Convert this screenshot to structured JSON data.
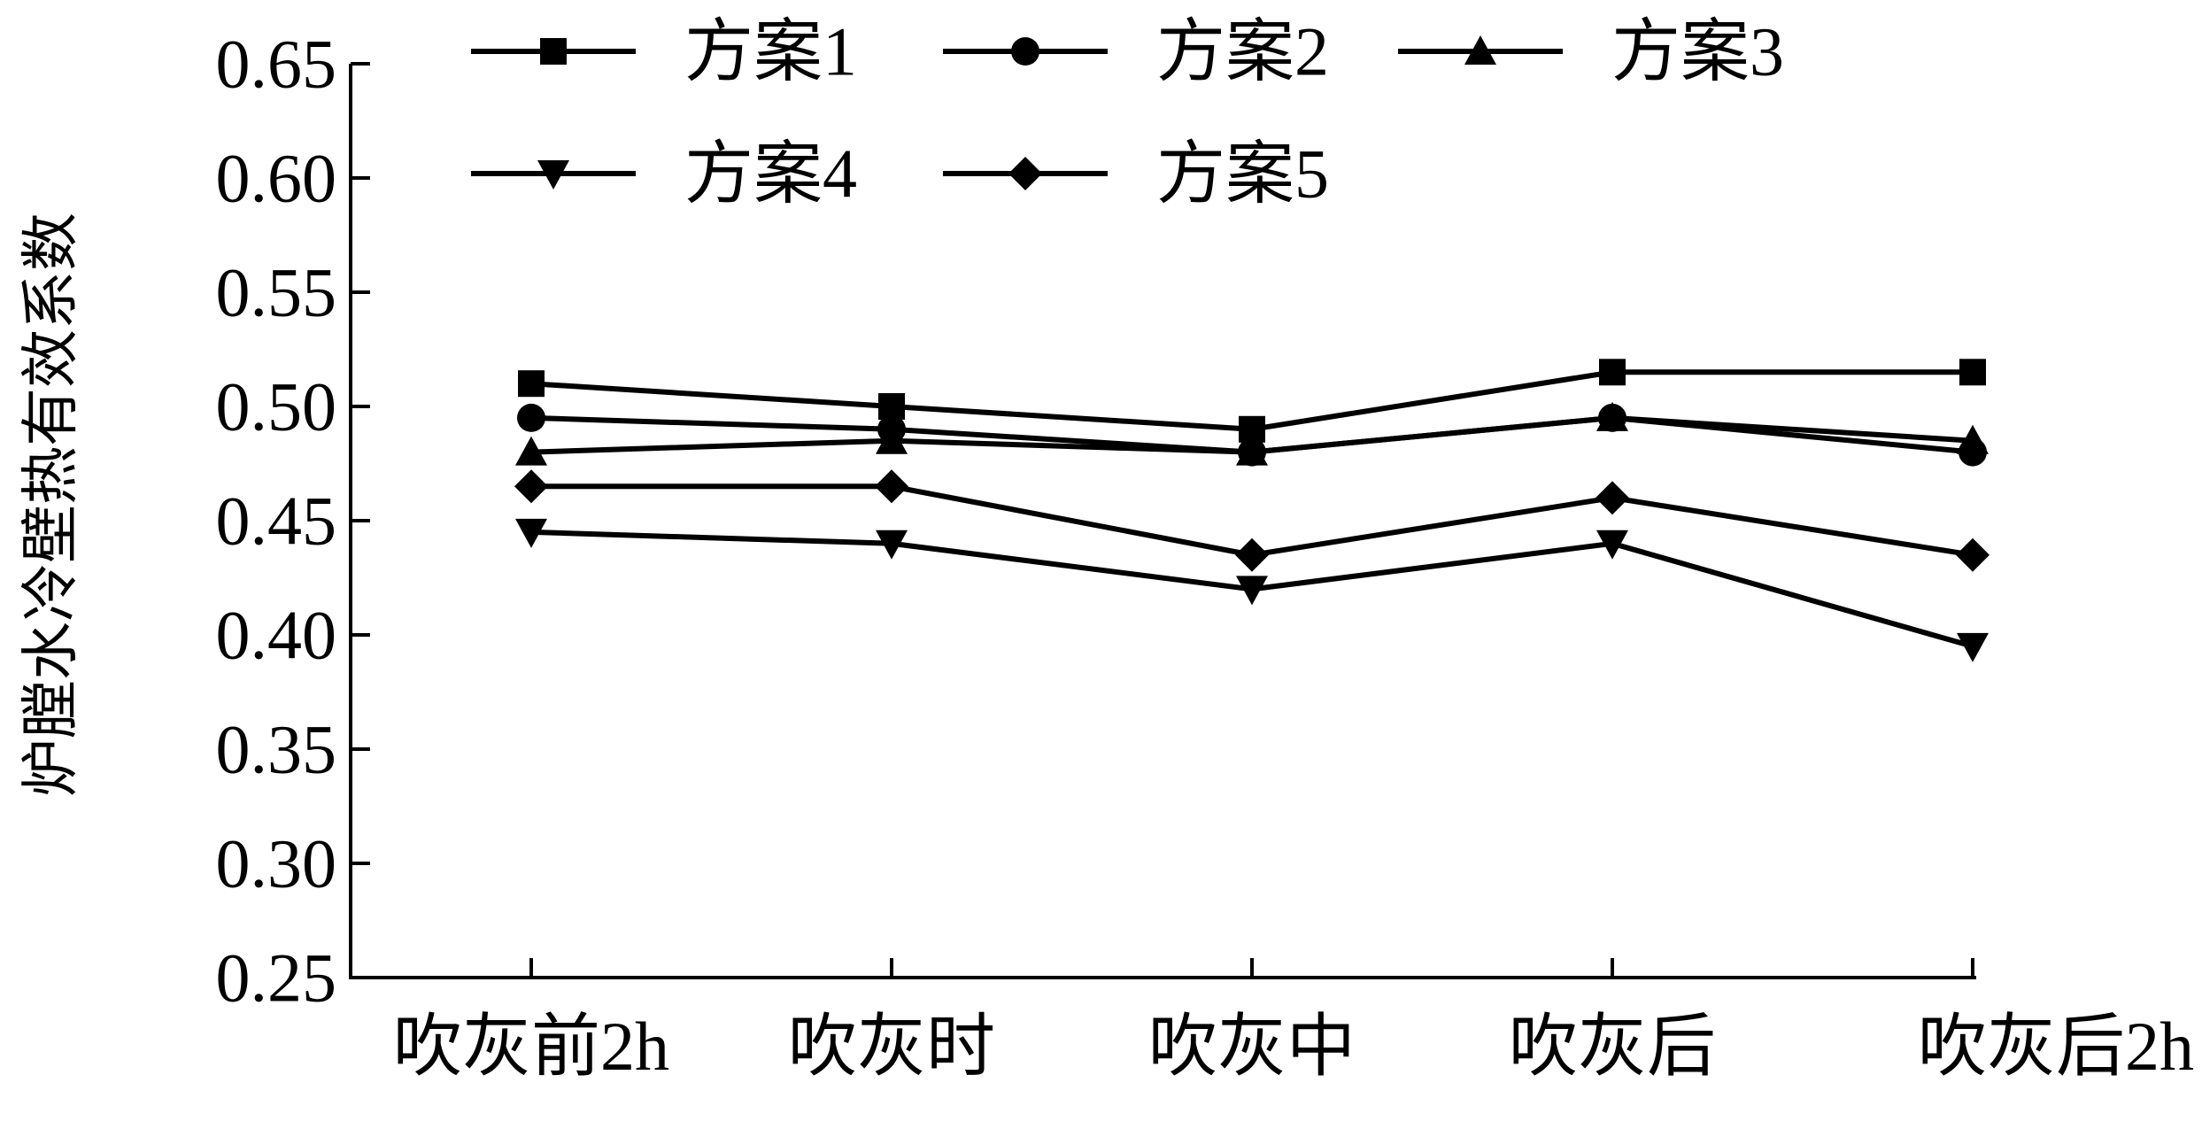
{
  "chart_data": {
    "type": "line",
    "title": "",
    "xlabel": "",
    "ylabel": "炉膛水冷壁热有效系数",
    "categories": [
      "吹灰前2h",
      "吹灰时",
      "吹灰中",
      "吹灰后",
      "吹灰后2h"
    ],
    "ylim": [
      0.25,
      0.65
    ],
    "yticks": [
      "0.25",
      "0.30",
      "0.35",
      "0.40",
      "0.45",
      "0.50",
      "0.55",
      "0.60",
      "0.65"
    ],
    "grid": false,
    "legend_position": "top",
    "series": [
      {
        "name": "方案1",
        "marker": "square",
        "values": [
          0.51,
          0.5,
          0.49,
          0.515,
          0.515
        ]
      },
      {
        "name": "方案2",
        "marker": "circle",
        "values": [
          0.495,
          0.49,
          0.48,
          0.495,
          0.48
        ]
      },
      {
        "name": "方案3",
        "marker": "triangle-up",
        "values": [
          0.48,
          0.485,
          0.48,
          0.495,
          0.485
        ]
      },
      {
        "name": "方案4",
        "marker": "triangle-down",
        "values": [
          0.445,
          0.44,
          0.42,
          0.44,
          0.395
        ]
      },
      {
        "name": "方案5",
        "marker": "diamond",
        "values": [
          0.465,
          0.465,
          0.435,
          0.46,
          0.435
        ]
      }
    ],
    "colors": {
      "line": "#000000",
      "background": "#ffffff"
    }
  }
}
